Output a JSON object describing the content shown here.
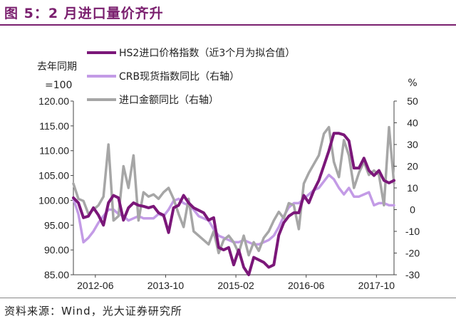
{
  "figure": {
    "title": "图 5：2 月进口量价齐升",
    "source": "资料来源：Wind，光大证券研究所"
  },
  "chart_data": {
    "type": "line",
    "ylabel_left": "去年同期=100",
    "ylabel_right": "%",
    "ylim_left": [
      85,
      120
    ],
    "ylim_right": [
      -30,
      50
    ],
    "yticks_left": [
      "120.00",
      "115.00",
      "110.00",
      "105.00",
      "100.00",
      "95.00",
      "90.00",
      "85.00"
    ],
    "yticks_right": [
      "50",
      "40",
      "30",
      "20",
      "10",
      "0",
      "-10",
      "-20",
      "-30"
    ],
    "x_start": "2012-01",
    "x_end": "2018-02",
    "xticks": [
      "2012-06",
      "2013-10",
      "2015-02",
      "2016-06",
      "2017-10"
    ],
    "legend": [
      "HS2进口价格指数（近3个月为拟合值）",
      "CRB现货指数同比（右轴）",
      "进口金额同比（右轴）"
    ],
    "colors": {
      "hs2": "#7b1779",
      "crb": "#c39be6",
      "import": "#a6a6a6"
    },
    "series": [
      {
        "name": "HS2进口价格指数（近3个月为拟合值）",
        "axis": "left",
        "values": [
          100.5,
          99.5,
          96.5,
          96.8,
          98.5,
          97.0,
          95.0,
          99.5,
          101.0,
          100.5,
          96.0,
          98.5,
          99.5,
          99.0,
          98.8,
          98.5,
          98.8,
          97.5,
          97.0,
          93.5,
          98.5,
          99.0,
          101.0,
          99.5,
          98.5,
          98.0,
          97.5,
          96.0,
          96.5,
          90.5,
          90.0,
          90.5,
          87.0,
          90.0,
          86.5,
          85.0,
          88.5,
          88.0,
          87.5,
          86.5,
          87.0,
          93.0,
          95.5,
          96.8,
          97.5,
          97.5,
          101.0,
          99.5,
          102.0,
          104.0,
          107.0,
          110.0,
          113.5,
          113.5,
          113.2,
          112.0,
          106.5,
          106.5,
          108.5,
          106.0,
          105.0,
          106.0,
          104.0,
          103.5,
          104.0
        ]
      },
      {
        "name": "CRB现货指数同比（右轴）",
        "axis": "right",
        "values": [
          5,
          -2,
          -15,
          -13,
          -10,
          -6,
          -3,
          0,
          0,
          -2,
          -3,
          -5,
          -4,
          -3,
          -4,
          -4,
          -4,
          -2,
          -3,
          0,
          4,
          5,
          3,
          2,
          0,
          -3,
          -4,
          -5,
          -9,
          -12,
          -13,
          -14,
          -15,
          -15,
          -14,
          -15,
          -16,
          -16,
          -15,
          -14,
          -12,
          -8,
          -3,
          1,
          3,
          3,
          5,
          7,
          9,
          10,
          13,
          16,
          14,
          10,
          7,
          10,
          6,
          6,
          7,
          8,
          2,
          3,
          3,
          2,
          2
        ]
      },
      {
        "name": "进口金额同比（右轴）",
        "axis": "right",
        "values": [
          12,
          5,
          4,
          -2,
          0,
          2,
          6,
          30,
          -5,
          -3,
          20,
          10,
          25,
          -5,
          8,
          6,
          7,
          5,
          8,
          10,
          5,
          -2,
          -8,
          5,
          -10,
          -12,
          -14,
          -16,
          -10,
          -20,
          -14,
          -12,
          -15,
          -20,
          -12,
          -21,
          -15,
          -19,
          -13,
          -10,
          -5,
          -1,
          -4,
          3,
          2,
          -9,
          12,
          17,
          21,
          25,
          35,
          38,
          22,
          15,
          32,
          25,
          10,
          17,
          22,
          16,
          18,
          16,
          2,
          38,
          12
        ]
      }
    ]
  }
}
